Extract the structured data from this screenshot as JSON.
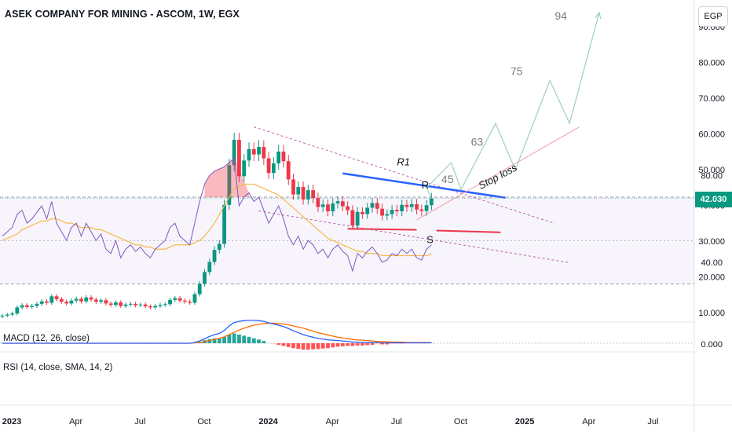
{
  "header": {
    "title": "ASEK COMPANY FOR MINING - ASCOM, 1W, EGX",
    "currency": "EGP"
  },
  "last_price": "42.030",
  "colors": {
    "up": "#089981",
    "down": "#f23645",
    "resistance": "#2962ff",
    "support": "#f23645",
    "channel": "#c45aa8",
    "projection": "#9fcfbf",
    "stop_loss": "#f4a0a8",
    "macd": "#2962ff",
    "signal": "#ff6d00",
    "rsi": "#7e57c2",
    "rsi_ma": "#f7b84b"
  },
  "chart_data": [
    {
      "type": "candlestick",
      "pane": "price",
      "title": "ASEK COMPANY FOR MINING - ASCOM, 1W, EGX",
      "ylim": [
        5,
        97
      ],
      "y_ticks": [
        "10.000",
        "20.000",
        "30.000",
        "40.000",
        "50.000",
        "60.000",
        "70.000",
        "80.000",
        "90.000"
      ],
      "x_ticks": [
        "2023",
        "Apr",
        "Jul",
        "Oct",
        "2024",
        "Apr",
        "Jul",
        "Oct",
        "2025",
        "Apr",
        "Jul"
      ],
      "close_series": [
        9.2,
        9.5,
        9.8,
        11.5,
        12.1,
        11.6,
        11.9,
        12.5,
        13.2,
        12.8,
        14.6,
        13.8,
        13.1,
        12.6,
        13.4,
        13.9,
        13.2,
        14.3,
        13.7,
        13.1,
        13.5,
        12.6,
        12.2,
        12.9,
        11.9,
        12.3,
        12.5,
        12.1,
        12.3,
        11.8,
        11.5,
        11.9,
        12.2,
        12.4,
        13.6,
        14.1,
        13.4,
        13.1,
        12.8,
        15.2,
        18.1,
        21.4,
        24.2,
        27.6,
        29.3,
        40.2,
        51.3,
        58.4,
        48.2,
        52.6,
        55.8,
        54.3,
        56.4,
        53.2,
        49.1,
        51.8,
        55.1,
        52.4,
        47.3,
        43.1,
        45.2,
        41.7,
        44.3,
        42.1,
        39.6,
        40.3,
        38.4,
        40.6,
        41.2,
        39.8,
        38.7,
        34.4,
        38.2,
        37.6,
        39.4,
        40.7,
        39.1,
        37.2,
        37.6,
        38.8,
        38.4,
        40.2,
        39.6,
        40.4,
        38.9,
        38.5,
        40.1,
        42.03
      ],
      "annotations": [
        "R1",
        "R",
        "S",
        "45",
        "63",
        "75",
        "94",
        "Stop loss"
      ],
      "projection_points": [
        [
          86,
          45
        ],
        [
          91,
          52
        ],
        [
          93,
          44.5
        ],
        [
          100,
          63
        ],
        [
          104,
          50
        ],
        [
          111,
          75
        ],
        [
          115,
          63
        ],
        [
          121,
          94
        ]
      ]
    },
    {
      "type": "line",
      "pane": "macd",
      "label": "MACD (12, 26, close)",
      "value_label": "0.000",
      "series": [
        {
          "key": "macd",
          "values": [
            0,
            0,
            0,
            0,
            0,
            0,
            0,
            0,
            0,
            0,
            0,
            0,
            0,
            0,
            0,
            0,
            0,
            0,
            0,
            0,
            0,
            0,
            0,
            0,
            0,
            0,
            0,
            0,
            0,
            0,
            0,
            0,
            0,
            0,
            0,
            0,
            0,
            0,
            0,
            0.2,
            0.6,
            1.2,
            1.8,
            2.3,
            2.6,
            3.4,
            4.6,
            5.5,
            5.8,
            6.0,
            6.1,
            6.1,
            6.0,
            5.8,
            5.4,
            5.1,
            4.8,
            4.4,
            3.9,
            3.3,
            2.8,
            2.3,
            1.9,
            1.6,
            1.3,
            1.1,
            0.9,
            0.8,
            0.7,
            0.6,
            0.5,
            0.3,
            0.3,
            0.2,
            0.2,
            0.2,
            0.2,
            0.1,
            0.1,
            0.1,
            0.1,
            0.1,
            0.1,
            0.1,
            0.1,
            0.1,
            0.1,
            0.2
          ]
        },
        {
          "key": "signal",
          "values": [
            0,
            0,
            0,
            0,
            0,
            0,
            0,
            0,
            0,
            0,
            0,
            0,
            0,
            0,
            0,
            0,
            0,
            0,
            0,
            0,
            0,
            0,
            0,
            0,
            0,
            0,
            0,
            0,
            0,
            0,
            0,
            0,
            0,
            0,
            0,
            0,
            0,
            0,
            0,
            0.1,
            0.2,
            0.4,
            0.7,
            1.0,
            1.3,
            1.7,
            2.3,
            2.9,
            3.5,
            4.0,
            4.4,
            4.8,
            5.0,
            5.2,
            5.3,
            5.3,
            5.2,
            5.1,
            4.9,
            4.6,
            4.3,
            4.0,
            3.6,
            3.2,
            2.8,
            2.5,
            2.2,
            1.9,
            1.6,
            1.4,
            1.2,
            1.0,
            0.9,
            0.8,
            0.7,
            0.6,
            0.5,
            0.4,
            0.4,
            0.3,
            0.3,
            0.3,
            0.2,
            0.2,
            0.2,
            0.2,
            0.2,
            0.2
          ]
        }
      ]
    },
    {
      "type": "line",
      "pane": "rsi",
      "label": "RSI (14, close, SMA, 14, 2)",
      "y_ticks": [
        "80.00",
        "40.00"
      ],
      "ylim": [
        28,
        92
      ],
      "band": [
        30,
        70
      ],
      "series": [
        {
          "key": "rsi",
          "values": [
            52,
            54,
            56,
            62,
            64,
            58,
            60,
            63,
            66,
            60,
            68,
            58,
            54,
            50,
            56,
            58,
            52,
            58,
            54,
            50,
            53,
            46,
            44,
            50,
            42,
            46,
            48,
            45,
            47,
            44,
            42,
            46,
            48,
            50,
            56,
            58,
            52,
            50,
            48,
            58,
            68,
            76,
            80,
            82,
            83,
            84,
            86,
            88,
            66,
            70,
            72,
            68,
            70,
            64,
            58,
            62,
            66,
            60,
            52,
            48,
            52,
            46,
            50,
            48,
            44,
            46,
            42,
            46,
            48,
            45,
            43,
            36,
            44,
            42,
            45,
            47,
            44,
            40,
            41,
            44,
            43,
            46,
            44,
            46,
            42,
            41,
            46,
            48
          ]
        },
        {
          "key": "rsi_ma",
          "values": [
            50,
            51,
            52,
            53,
            55,
            56,
            57,
            58,
            59,
            59,
            60,
            60,
            59,
            58,
            58,
            57,
            56,
            56,
            56,
            55,
            55,
            54,
            53,
            52,
            51,
            50,
            49,
            48,
            48,
            47,
            47,
            46,
            46,
            46,
            47,
            48,
            48,
            48,
            48,
            49,
            50,
            52,
            55,
            58,
            62,
            66,
            70,
            74,
            75,
            76,
            76,
            76,
            75,
            74,
            73,
            72,
            71,
            69,
            67,
            65,
            63,
            61,
            59,
            57,
            55,
            53,
            51,
            50,
            49,
            48,
            47,
            46,
            45,
            45,
            44,
            44,
            44,
            43,
            43,
            43,
            43,
            43,
            43,
            43,
            43,
            43,
            43,
            44
          ]
        }
      ]
    }
  ]
}
